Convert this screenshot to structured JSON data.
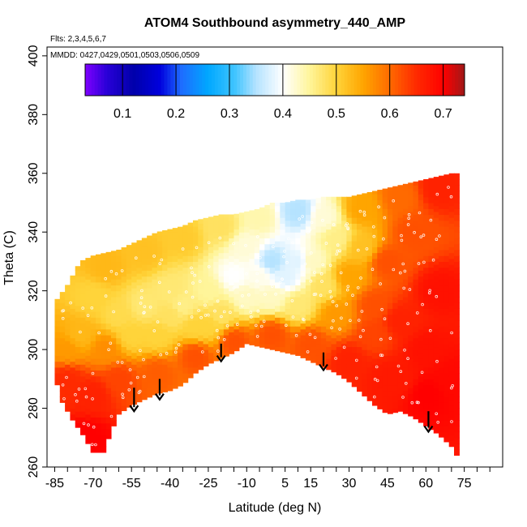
{
  "chart_data": {
    "type": "heatmap",
    "title": "ATOM4 Southbound asymmetry_440_AMP",
    "subtitle_flights": "Flts: 2,3,4,5,6,7",
    "subtitle_dates": "MMDD: 0427,0429,0501,0503,0506,0509",
    "xlabel": "Latitude (deg N)",
    "ylabel": "Theta (C)",
    "xlim": [
      -88,
      90
    ],
    "ylim": [
      260,
      403
    ],
    "x_ticks": [
      -85,
      -70,
      -55,
      -40,
      -25,
      -10,
      5,
      15,
      30,
      45,
      60,
      75
    ],
    "x_minor_ticks": [
      -80,
      -75,
      -65,
      -60,
      -50,
      -45,
      -35,
      -30,
      -20,
      -15,
      -5,
      0,
      10,
      20,
      25,
      35,
      40,
      50,
      55,
      65,
      70,
      80,
      85
    ],
    "x_tick_labels": [
      "-85",
      "-70",
      "-55",
      "-40",
      "-25",
      "-10",
      "5",
      "15",
      "30",
      "45",
      "60",
      "75"
    ],
    "y_ticks": [
      260,
      280,
      300,
      320,
      340,
      360,
      380,
      400
    ],
    "y_tick_labels": [
      "260",
      "280",
      "300",
      "320",
      "340",
      "360",
      "380",
      "400"
    ],
    "colorbar": {
      "range": [
        0.03,
        0.74
      ],
      "ticks": [
        0.1,
        0.2,
        0.3,
        0.4,
        0.5,
        0.6,
        0.7
      ],
      "tick_labels": [
        "0.1",
        "0.2",
        "0.3",
        "0.4",
        "0.5",
        "0.6",
        "0.7"
      ],
      "stops": [
        {
          "v": 0.03,
          "color": "#7f00ff"
        },
        {
          "v": 0.07,
          "color": "#2a00d8"
        },
        {
          "v": 0.12,
          "color": "#0000aa"
        },
        {
          "v": 0.17,
          "color": "#0000dd"
        },
        {
          "v": 0.21,
          "color": "#1e6cff"
        },
        {
          "v": 0.26,
          "color": "#00a8ff"
        },
        {
          "v": 0.31,
          "color": "#3fc4ff"
        },
        {
          "v": 0.35,
          "color": "#b5e3ff"
        },
        {
          "v": 0.4,
          "color": "#ffffff"
        },
        {
          "v": 0.45,
          "color": "#fff59a"
        },
        {
          "v": 0.5,
          "color": "#ffd43a"
        },
        {
          "v": 0.55,
          "color": "#ffa500"
        },
        {
          "v": 0.6,
          "color": "#ff6a00"
        },
        {
          "v": 0.65,
          "color": "#ff2a00"
        },
        {
          "v": 0.7,
          "color": "#ff0000"
        },
        {
          "v": 0.74,
          "color": "#a01818"
        }
      ]
    },
    "field": {
      "lat_range": [
        -85,
        72
      ],
      "upper_boundary": [
        [
          -85,
          316
        ],
        [
          -80,
          322
        ],
        [
          -75,
          330
        ],
        [
          -70,
          332
        ],
        [
          -65,
          333
        ],
        [
          -60,
          334
        ],
        [
          -55,
          336
        ],
        [
          -50,
          338
        ],
        [
          -45,
          340
        ],
        [
          -40,
          341
        ],
        [
          -35,
          342
        ],
        [
          -30,
          344
        ],
        [
          -25,
          345
        ],
        [
          -20,
          346
        ],
        [
          -15,
          346
        ],
        [
          -10,
          347
        ],
        [
          -5,
          348
        ],
        [
          0,
          350
        ],
        [
          5,
          350
        ],
        [
          10,
          351
        ],
        [
          15,
          351
        ],
        [
          20,
          352
        ],
        [
          25,
          352
        ],
        [
          30,
          352
        ],
        [
          35,
          353
        ],
        [
          40,
          354
        ],
        [
          45,
          355
        ],
        [
          50,
          356
        ],
        [
          55,
          357
        ],
        [
          60,
          358
        ],
        [
          65,
          359
        ],
        [
          70,
          360
        ],
        [
          72,
          360
        ]
      ],
      "lower_boundary": [
        [
          -85,
          291
        ],
        [
          -82,
          282
        ],
        [
          -78,
          276
        ],
        [
          -74,
          271
        ],
        [
          -70,
          265
        ],
        [
          -66,
          265
        ],
        [
          -63,
          272
        ],
        [
          -60,
          278
        ],
        [
          -55,
          281
        ],
        [
          -50,
          283
        ],
        [
          -45,
          285
        ],
        [
          -40,
          286
        ],
        [
          -35,
          288
        ],
        [
          -30,
          292
        ],
        [
          -25,
          295
        ],
        [
          -20,
          297
        ],
        [
          -15,
          299
        ],
        [
          -10,
          302
        ],
        [
          -5,
          301
        ],
        [
          0,
          300
        ],
        [
          5,
          299
        ],
        [
          10,
          298
        ],
        [
          15,
          296
        ],
        [
          20,
          294
        ],
        [
          25,
          292
        ],
        [
          30,
          289
        ],
        [
          35,
          285
        ],
        [
          40,
          281
        ],
        [
          45,
          278
        ],
        [
          50,
          279
        ],
        [
          55,
          277
        ],
        [
          60,
          274
        ],
        [
          65,
          271
        ],
        [
          70,
          267
        ],
        [
          72,
          264
        ]
      ],
      "values": [
        [
          -80,
          300,
          0.56
        ],
        [
          -75,
          305,
          0.53
        ],
        [
          -70,
          318,
          0.5
        ],
        [
          -65,
          300,
          0.57
        ],
        [
          -60,
          312,
          0.49
        ],
        [
          -55,
          305,
          0.5
        ],
        [
          -50,
          315,
          0.47
        ],
        [
          -45,
          305,
          0.5
        ],
        [
          -40,
          320,
          0.47
        ],
        [
          -35,
          315,
          0.46
        ],
        [
          -30,
          308,
          0.5
        ],
        [
          -25,
          320,
          0.45
        ],
        [
          -20,
          312,
          0.48
        ],
        [
          -15,
          325,
          0.4
        ],
        [
          -10,
          318,
          0.43
        ],
        [
          -5,
          325,
          0.41
        ],
        [
          0,
          318,
          0.43
        ],
        [
          5,
          325,
          0.38
        ],
        [
          10,
          315,
          0.47
        ],
        [
          15,
          330,
          0.43
        ],
        [
          20,
          322,
          0.48
        ],
        [
          25,
          312,
          0.56
        ],
        [
          30,
          325,
          0.55
        ],
        [
          35,
          335,
          0.52
        ],
        [
          40,
          315,
          0.62
        ],
        [
          45,
          330,
          0.62
        ],
        [
          50,
          310,
          0.66
        ],
        [
          55,
          340,
          0.62
        ],
        [
          60,
          300,
          0.68
        ],
        [
          65,
          320,
          0.68
        ],
        [
          70,
          290,
          0.69
        ],
        [
          -80,
          290,
          0.65
        ],
        [
          -70,
          285,
          0.66
        ],
        [
          -60,
          290,
          0.63
        ],
        [
          -45,
          292,
          0.61
        ],
        [
          -30,
          298,
          0.62
        ],
        [
          -15,
          303,
          0.62
        ],
        [
          0,
          305,
          0.62
        ],
        [
          15,
          302,
          0.62
        ],
        [
          30,
          296,
          0.66
        ],
        [
          45,
          290,
          0.67
        ],
        [
          60,
          285,
          0.7
        ],
        [
          -72,
          270,
          0.7
        ],
        [
          -65,
          328,
          0.53
        ],
        [
          -50,
          333,
          0.52
        ],
        [
          -35,
          338,
          0.51
        ],
        [
          -20,
          342,
          0.48
        ],
        [
          -5,
          345,
          0.44
        ],
        [
          10,
          347,
          0.35
        ],
        [
          20,
          345,
          0.42
        ],
        [
          35,
          348,
          0.55
        ],
        [
          50,
          352,
          0.6
        ],
        [
          65,
          355,
          0.66
        ],
        [
          -40,
          312,
          0.48
        ],
        [
          -25,
          308,
          0.5
        ],
        [
          0,
          330,
          0.35
        ],
        [
          -10,
          335,
          0.42
        ],
        [
          10,
          330,
          0.38
        ],
        [
          25,
          338,
          0.46
        ],
        [
          40,
          305,
          0.63
        ],
        [
          50,
          290,
          0.67
        ]
      ]
    },
    "arrows": [
      {
        "lat": -54,
        "theta_top": 287,
        "theta_tip": 279
      },
      {
        "lat": -44,
        "theta_top": 290,
        "theta_tip": 283
      },
      {
        "lat": -20,
        "theta_top": 302,
        "theta_tip": 296
      },
      {
        "lat": 20,
        "theta_top": 299,
        "theta_tip": 293
      },
      {
        "lat": 61,
        "theta_top": 279,
        "theta_tip": 272
      }
    ]
  }
}
